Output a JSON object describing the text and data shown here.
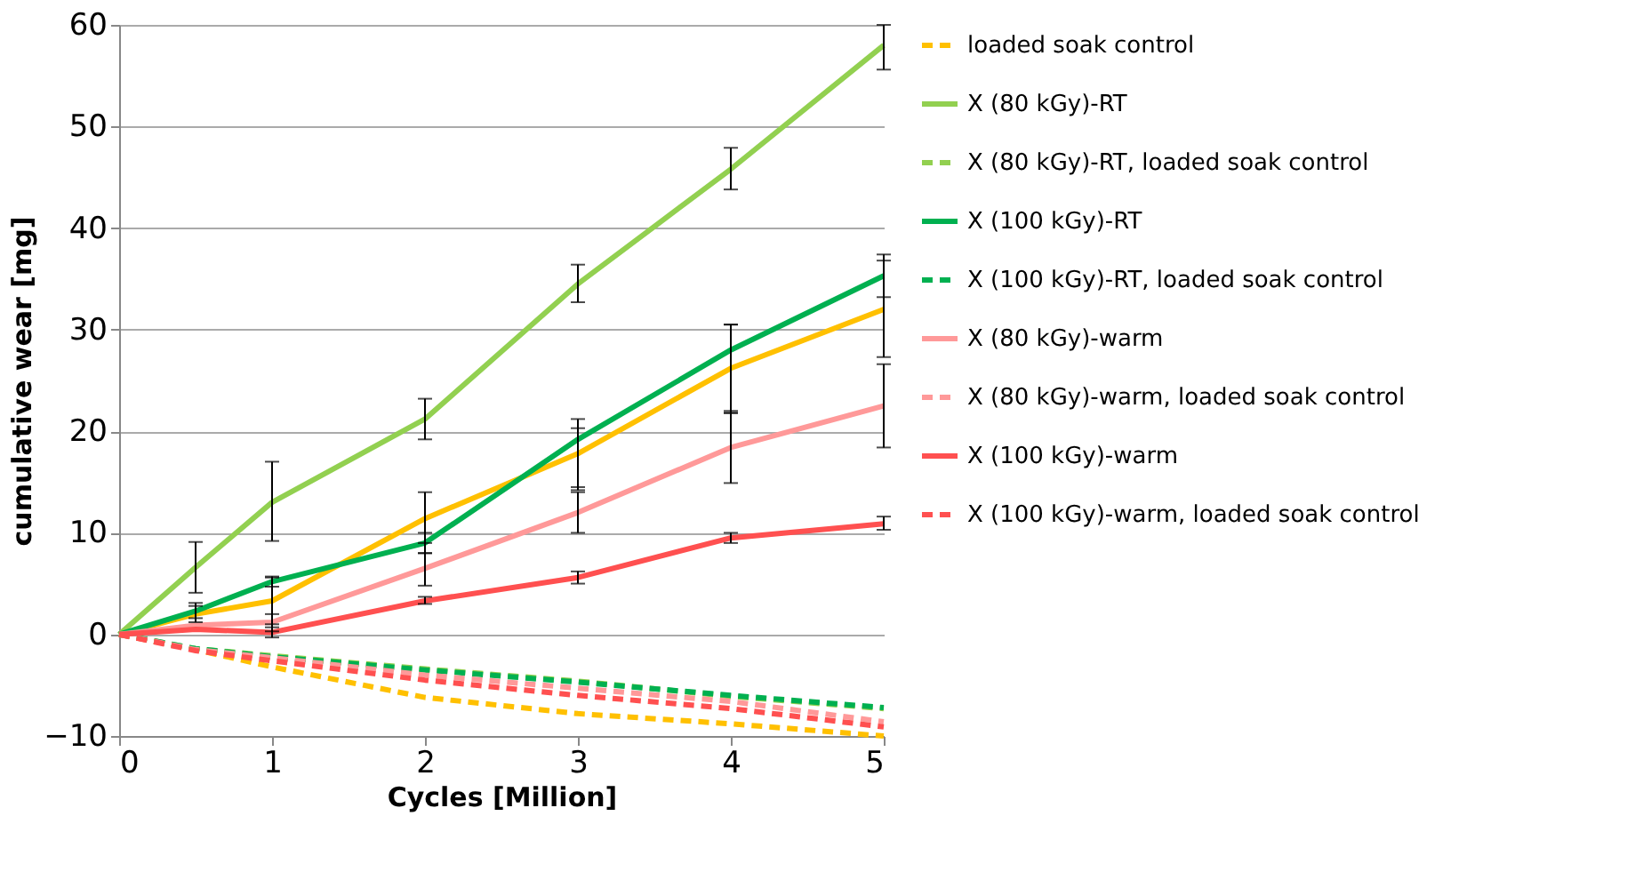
{
  "chart_data": {
    "type": "line",
    "xlabel": "Cycles [Million]",
    "ylabel": "cumulative wear [mg]",
    "xlim": [
      0,
      5
    ],
    "xticks": [
      0,
      1,
      2,
      3,
      4,
      5
    ],
    "ylim": [
      -10,
      60
    ],
    "yticks": [
      -10,
      0,
      10,
      20,
      30,
      40,
      50,
      60
    ],
    "grid": "y",
    "legend": "right",
    "marker": "none",
    "series": [
      {
        "color": "#ffc000",
        "line_style": "solid",
        "x": [
          0,
          0.5,
          1,
          2,
          3,
          4,
          5
        ],
        "values": [
          0,
          2,
          3.3,
          11.4,
          17.8,
          26.2,
          32
        ],
        "errors": [
          null,
          [
            1.2,
            2.8
          ],
          [
            1,
            5.6
          ],
          [
            9,
            14
          ],
          [
            14.5,
            20.3
          ],
          [
            22,
            30.5
          ],
          [
            27.3,
            36.8
          ]
        ]
      },
      {
        "name": "loaded soak control",
        "color": "#ffc000",
        "line_style": "dashed",
        "x": [
          0,
          0.5,
          1,
          2,
          3,
          4,
          5
        ],
        "values": [
          0,
          -1.5,
          -3.2,
          -6.2,
          -7.8,
          -8.8,
          -10
        ]
      },
      {
        "name": "X (80 kGy)-RT",
        "color": "#92d050",
        "line_style": "solid",
        "x": [
          0,
          0.5,
          1,
          2,
          3,
          4,
          5
        ],
        "values": [
          0,
          6.6,
          13,
          21.2,
          34.5,
          45.8,
          58
        ],
        "errors": [
          null,
          [
            4.1,
            9.1
          ],
          [
            9.2,
            17
          ],
          [
            19.2,
            23.2
          ],
          [
            32.7,
            36.4
          ],
          [
            43.8,
            47.9
          ],
          [
            55.6,
            60
          ]
        ]
      },
      {
        "name": "X (80 kGy)-RT, loaded soak control",
        "color": "#92d050",
        "line_style": "dashed",
        "x": [
          0,
          0.5,
          1,
          2,
          3,
          4,
          5
        ],
        "values": [
          0,
          -1.4,
          -2.1,
          -3.4,
          -4.6,
          -6.1,
          -7.3
        ]
      },
      {
        "name": "X (100 kGy)-RT",
        "color": "#00b050",
        "line_style": "solid",
        "x": [
          0,
          0.5,
          1,
          2,
          3,
          4,
          5
        ],
        "values": [
          0,
          2.3,
          5.2,
          9,
          19.2,
          28,
          35.3
        ],
        "errors": [
          null,
          [
            1.6,
            3.1
          ],
          [
            4.7,
            5.7
          ],
          [
            8,
            10
          ],
          [
            14.2,
            21.2
          ],
          [
            21.8,
            30.5
          ],
          [
            33.2,
            37.4
          ]
        ]
      },
      {
        "name": "X (100 kGy)-RT, loaded soak control",
        "color": "#00b050",
        "line_style": "dashed",
        "x": [
          0,
          0.5,
          1,
          2,
          3,
          4,
          5
        ],
        "values": [
          0,
          -1.4,
          -2.2,
          -3.5,
          -4.7,
          -6,
          -7.2
        ]
      },
      {
        "name": "X (80 kGy)-warm",
        "color": "#ff9999",
        "line_style": "solid",
        "x": [
          0,
          0.5,
          1,
          2,
          3,
          4,
          5
        ],
        "values": [
          0,
          0.9,
          1.2,
          6.5,
          12,
          18.4,
          22.5
        ],
        "errors": [
          null,
          null,
          [
            0.3,
            2
          ],
          [
            4.8,
            8
          ],
          [
            10,
            14
          ],
          [
            14.9,
            21.8
          ],
          [
            18.4,
            26.6
          ]
        ]
      },
      {
        "name": "X (80 kGy)-warm, loaded soak control",
        "color": "#ff9999",
        "line_style": "dashed",
        "x": [
          0,
          0.5,
          1,
          2,
          3,
          4,
          5
        ],
        "values": [
          0,
          -1.5,
          -2.3,
          -4,
          -5.3,
          -6.6,
          -8.6
        ]
      },
      {
        "name": "X (100 kGy)-warm",
        "color": "#ff5050",
        "line_style": "solid",
        "x": [
          0,
          0.5,
          1,
          2,
          3,
          4,
          5
        ],
        "values": [
          0,
          0.5,
          0.2,
          3.3,
          5.6,
          9.5,
          10.9
        ],
        "errors": [
          null,
          null,
          [
            -0.3,
            0.7
          ],
          [
            3,
            3.7
          ],
          [
            5,
            6.2
          ],
          [
            9,
            10
          ],
          [
            10.3,
            11.6
          ]
        ]
      },
      {
        "name": "X (100 kGy)-warm, loaded soak control",
        "color": "#ff5050",
        "line_style": "dashed",
        "x": [
          0,
          0.5,
          1,
          2,
          3,
          4,
          5
        ],
        "values": [
          0,
          -1.6,
          -2.6,
          -4.5,
          -6,
          -7.3,
          -9.1
        ]
      }
    ]
  }
}
